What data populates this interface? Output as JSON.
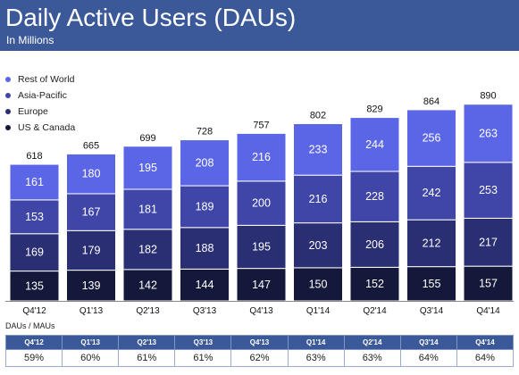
{
  "header": {
    "title": "Daily Active Users (DAUs)",
    "subtitle": "In Millions",
    "color": "#3b5998"
  },
  "chart_data": {
    "type": "bar",
    "stacked": true,
    "title": "Daily Active Users (DAUs)",
    "subtitle": "In Millions",
    "categories": [
      "Q4'12",
      "Q1'13",
      "Q2'13",
      "Q3'13",
      "Q4'13",
      "Q1'14",
      "Q2'14",
      "Q3'14",
      "Q4'14"
    ],
    "totals": [
      618,
      665,
      699,
      728,
      757,
      802,
      829,
      864,
      890
    ],
    "series": [
      {
        "name": "US & Canada",
        "color": "#14183a",
        "values": [
          135,
          139,
          142,
          144,
          147,
          150,
          152,
          155,
          157
        ]
      },
      {
        "name": "Europe",
        "color": "#2a2e72",
        "values": [
          169,
          179,
          182,
          188,
          195,
          203,
          206,
          212,
          217
        ]
      },
      {
        "name": "Asia-Pacific",
        "color": "#4046a8",
        "values": [
          153,
          167,
          181,
          189,
          200,
          216,
          228,
          242,
          253
        ]
      },
      {
        "name": "Rest of World",
        "color": "#5a66e6",
        "values": [
          161,
          180,
          195,
          208,
          216,
          233,
          244,
          256,
          263
        ]
      }
    ],
    "legend_order": [
      "Rest of World",
      "Asia-Pacific",
      "Europe",
      "US & Canada"
    ],
    "legend_position": "top-left",
    "ylim": [
      0,
      900
    ],
    "grid": false
  },
  "ratio": {
    "caption": "DAUs / MAUs",
    "headers": [
      "Q4'12",
      "Q1'13",
      "Q2'13",
      "Q3'13",
      "Q4'13",
      "Q1'14",
      "Q2'14",
      "Q3'14",
      "Q4'14"
    ],
    "values": [
      "59%",
      "60%",
      "61%",
      "61%",
      "62%",
      "63%",
      "63%",
      "64%",
      "64%"
    ]
  }
}
